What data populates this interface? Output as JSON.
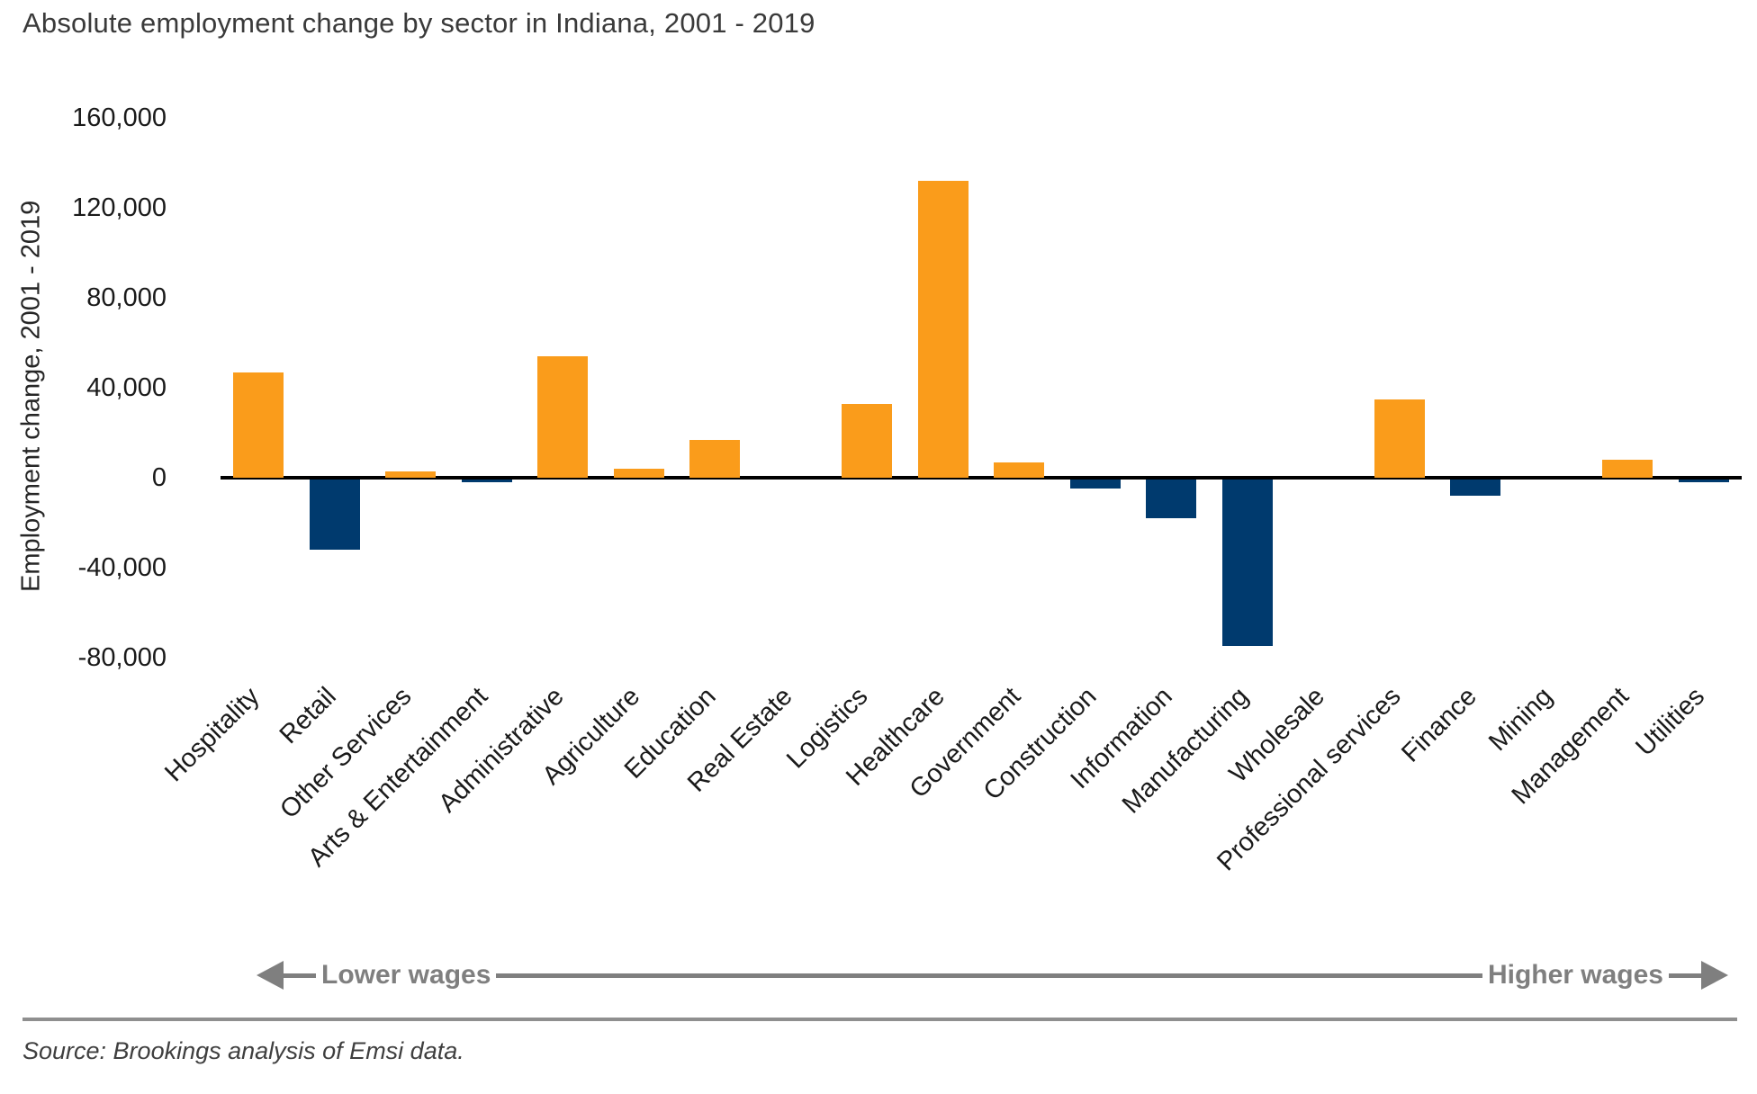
{
  "source_note": "Source: Brookings analysis of Emsi data.",
  "chart_data": {
    "type": "bar",
    "title": "Absolute employment change by sector in Indiana, 2001 - 2019",
    "ylabel": "Employment change, 2001 - 2019",
    "xlabel": "",
    "ylim": [
      -88000,
      160000
    ],
    "grid": "off",
    "legend": "none",
    "y_ticks": [
      {
        "value": 160000,
        "label": "160,000"
      },
      {
        "value": 120000,
        "label": "120,000"
      },
      {
        "value": 80000,
        "label": "80,000"
      },
      {
        "value": 40000,
        "label": "40,000"
      },
      {
        "value": 0,
        "label": "0"
      },
      {
        "value": -40000,
        "label": "-40,000"
      },
      {
        "value": -80000,
        "label": "-80,000"
      }
    ],
    "categories": [
      "Hospitality",
      "Retail",
      "Other Services",
      "Arts & Entertainment",
      "Administrative",
      "Agriculture",
      "Education",
      "Real Estate",
      "Logistics",
      "Healthcare",
      "Government",
      "Construction",
      "Information",
      "Manufacturing",
      "Wholesale",
      "Professional services",
      "Finance",
      "Mining",
      "Management",
      "Utilities"
    ],
    "values": [
      47000,
      -31000,
      3000,
      -1000,
      54000,
      4000,
      17000,
      0,
      33000,
      132000,
      7000,
      -4000,
      -17000,
      -74000,
      0,
      35000,
      -7000,
      0,
      8000,
      -1000
    ],
    "bar_colors": {
      "positive": "#FA9C1B",
      "negative": "#003A6E"
    },
    "annotations": {
      "left_arrow_label": "Lower wages",
      "right_arrow_label": "Higher wages",
      "arrow_color": "#7f7f7f"
    },
    "x_axis_ordering_note": "sectors ordered from lower wages (left) to higher wages (right)"
  }
}
